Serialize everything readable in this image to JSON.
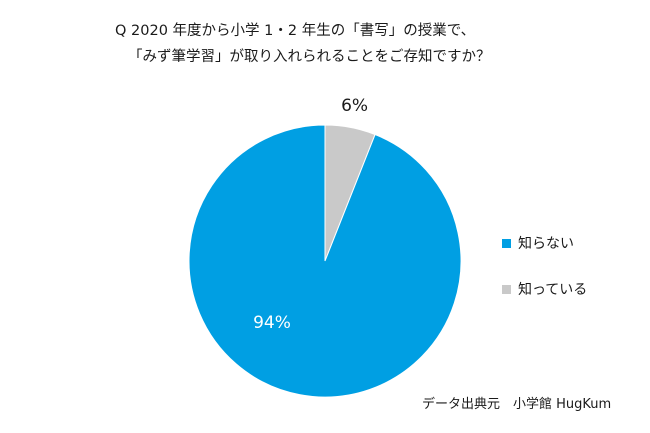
{
  "title": {
    "line1": "Q 2020 年度から小学 1・2 年生の「書写」の授業で、",
    "line2": "「みず筆学習」が取り入れられることをご存知ですか？"
  },
  "chart_data": {
    "type": "pie",
    "title": "Q 2020 年度から小学 1・2 年生の「書写」の授業で、「みず筆学習」が取り入れられることをご存知ですか？",
    "slices": [
      {
        "label": "知っている",
        "value": 6,
        "display": "6%",
        "color": "#c9c9c9"
      },
      {
        "label": "知らない",
        "value": 94,
        "display": "94%",
        "color": "#009fe3"
      }
    ],
    "legend_position": "right",
    "legend": [
      {
        "label": "知らない",
        "color": "#009fe3"
      },
      {
        "label": "知っている",
        "color": "#c9c9c9"
      }
    ]
  },
  "source": "データ出典元　小学館 HugKum"
}
